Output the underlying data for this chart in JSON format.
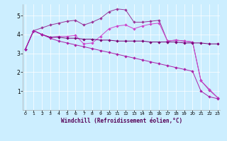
{
  "bg_color": "#cceeff",
  "xlabel": "Windchill (Refroidissement éolien,°C)",
  "line_colors": [
    "#993399",
    "#cc33cc",
    "#660066",
    "#993399"
  ],
  "xlim": [
    0,
    23
  ],
  "ylim": [
    0,
    5.6
  ],
  "yticks": [
    1,
    2,
    3,
    4,
    5
  ],
  "xticks": [
    0,
    1,
    2,
    3,
    4,
    5,
    6,
    7,
    8,
    9,
    10,
    11,
    12,
    13,
    14,
    15,
    16,
    17,
    18,
    19,
    20,
    21,
    22,
    23
  ],
  "seriesA": [
    3.2,
    4.2,
    4.35,
    4.5,
    4.6,
    4.7,
    4.75,
    4.5,
    4.65,
    4.85,
    5.2,
    5.35,
    5.3,
    4.65,
    4.65,
    4.7,
    4.75,
    3.65,
    3.7,
    3.65,
    3.6,
    1.55,
    1.05,
    0.65
  ],
  "seriesB": [
    3.2,
    4.2,
    4.0,
    3.85,
    3.9,
    3.9,
    3.95,
    3.5,
    3.55,
    3.9,
    4.3,
    4.45,
    4.5,
    4.3,
    4.45,
    4.55,
    4.6,
    3.65,
    3.7,
    3.65,
    3.6,
    1.55,
    1.1,
    0.65
  ],
  "seriesC": [
    3.2,
    4.2,
    4.0,
    3.85,
    3.85,
    3.8,
    3.8,
    3.75,
    3.75,
    3.7,
    3.7,
    3.65,
    3.65,
    3.65,
    3.65,
    3.6,
    3.6,
    3.6,
    3.6,
    3.55,
    3.55,
    3.55,
    3.5,
    3.5
  ],
  "seriesD": [
    3.2,
    4.2,
    4.0,
    3.8,
    3.65,
    3.55,
    3.45,
    3.35,
    3.25,
    3.15,
    3.05,
    2.95,
    2.85,
    2.75,
    2.65,
    2.55,
    2.45,
    2.35,
    2.25,
    2.15,
    2.05,
    1.0,
    0.7,
    0.6
  ]
}
